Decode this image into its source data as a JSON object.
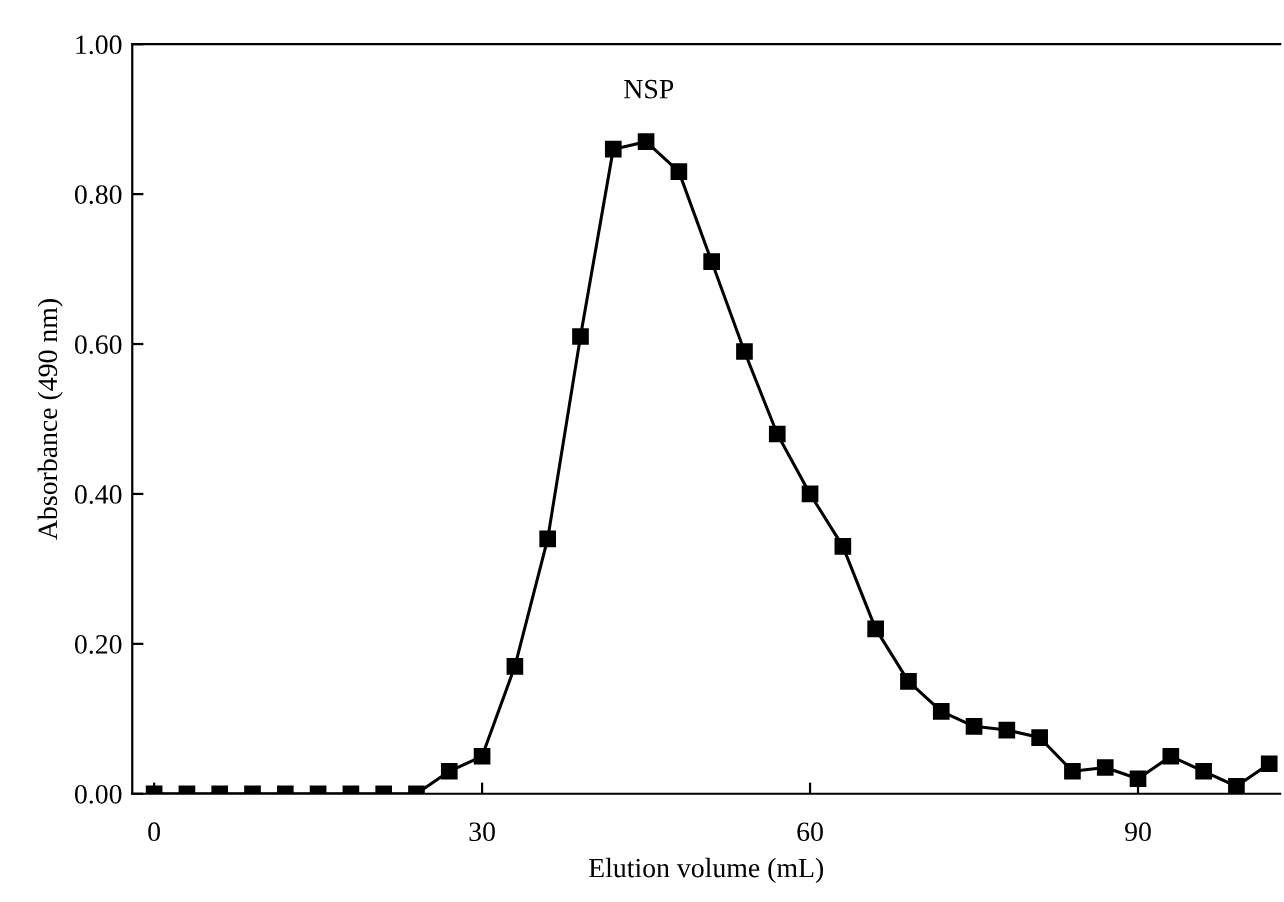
{
  "chart_data": {
    "type": "line",
    "xlabel": "Elution volume (mL)",
    "ylabel": "Absorbance (490 nm)",
    "x": [
      0,
      3,
      6,
      9,
      12,
      15,
      18,
      21,
      24,
      27,
      30,
      33,
      36,
      39,
      42,
      45,
      48,
      51,
      54,
      57,
      60,
      63,
      66,
      69,
      72,
      75,
      78,
      81,
      84,
      87,
      90,
      93,
      96,
      99,
      102
    ],
    "series": [
      {
        "color": "#000000",
        "values": [
          0,
          0,
          0,
          0,
          0,
          0,
          0,
          0,
          0,
          0.03,
          0.05,
          0.17,
          0.34,
          0.61,
          0.86,
          0.87,
          0.83,
          0.71,
          0.59,
          0.48,
          0.4,
          0.33,
          0.22,
          0.15,
          0.11,
          0.09,
          0.085,
          0.075,
          0.03,
          0.035,
          0.02,
          0.05,
          0.03,
          0.01,
          0.04
        ]
      }
    ],
    "xlim": [
      -2,
      103
    ],
    "xticks": [
      0,
      30,
      60,
      90
    ],
    "ylim": [
      0,
      1
    ],
    "yticks": [
      {
        "value": 0,
        "label": "0.00"
      },
      {
        "value": 0.2,
        "label": "0.20"
      },
      {
        "value": 0.4,
        "label": "0.40"
      },
      {
        "value": 0.6,
        "label": "0.60"
      },
      {
        "value": 0.8,
        "label": "0.80"
      },
      {
        "value": 1,
        "label": "1.00"
      }
    ],
    "annotations": [
      "NSP"
    ],
    "marker": "square",
    "line_style": "solid",
    "grid": false,
    "legend": false
  }
}
